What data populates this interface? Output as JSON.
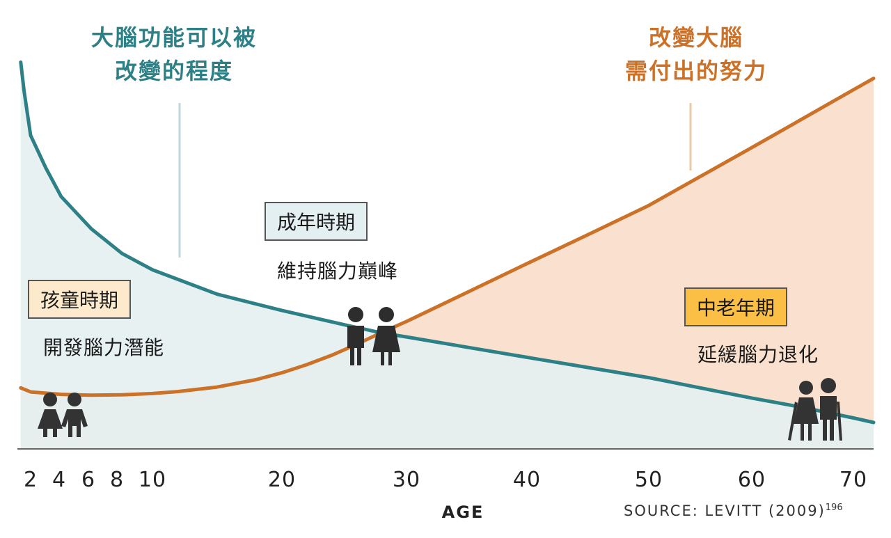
{
  "chart_data": {
    "type": "line",
    "x_ticks": [
      2,
      4,
      6,
      8,
      10,
      20,
      30,
      40,
      50,
      60,
      70
    ],
    "xlabel": "AGE",
    "source": "SOURCE: LEVITT (2009)",
    "source_sup": "196",
    "series": [
      {
        "name": "大腦功能可以被改變的程度",
        "label_lines": [
          "大腦功能可以被",
          "改變的程度"
        ],
        "color": "#2e8087",
        "fill": "#e4eff1",
        "x": [
          0.5,
          1,
          2,
          3,
          4,
          6,
          8,
          10,
          15,
          20,
          25,
          28,
          30,
          35,
          40,
          45,
          50,
          55,
          60,
          65,
          70,
          72
        ],
        "y": [
          95,
          88,
          77,
          69,
          62,
          54,
          48,
          44,
          38,
          34,
          30.5,
          28.5,
          27.5,
          25,
          22.5,
          20,
          17.5,
          15,
          12.5,
          10.2,
          7.6,
          6.5
        ]
      },
      {
        "name": "改變大腦需付出的努力",
        "label_lines": [
          "改變大腦",
          "需付出的努力"
        ],
        "color": "#cc7128",
        "fill": "#fae1cf",
        "x": [
          0.5,
          2,
          4,
          6,
          8,
          10,
          12,
          15,
          18,
          20,
          22,
          24,
          26,
          28,
          30,
          35,
          40,
          45,
          50,
          55,
          60,
          65,
          70,
          72
        ],
        "y": [
          15,
          14,
          13.4,
          13.2,
          13.3,
          13.6,
          14.1,
          15.2,
          17,
          18.7,
          20.7,
          23,
          25.7,
          28.6,
          31.3,
          38.4,
          45.5,
          52.6,
          59.8,
          66.9,
          74,
          81.1,
          88.2,
          91
        ]
      }
    ],
    "stages": [
      {
        "title": "孩童時期",
        "desc": "開發腦力潛能",
        "box_color": "#fde9cc"
      },
      {
        "title": "成年時期",
        "desc": "維持腦力巔峰",
        "box_color": "#e4eff1"
      },
      {
        "title": "中老年期",
        "desc": "延緩腦力退化",
        "box_color": "#fbbf46"
      }
    ]
  },
  "icons": {
    "children": "children-icon",
    "adults": "adult-couple-icon",
    "elderly": "elderly-couple-icon"
  }
}
